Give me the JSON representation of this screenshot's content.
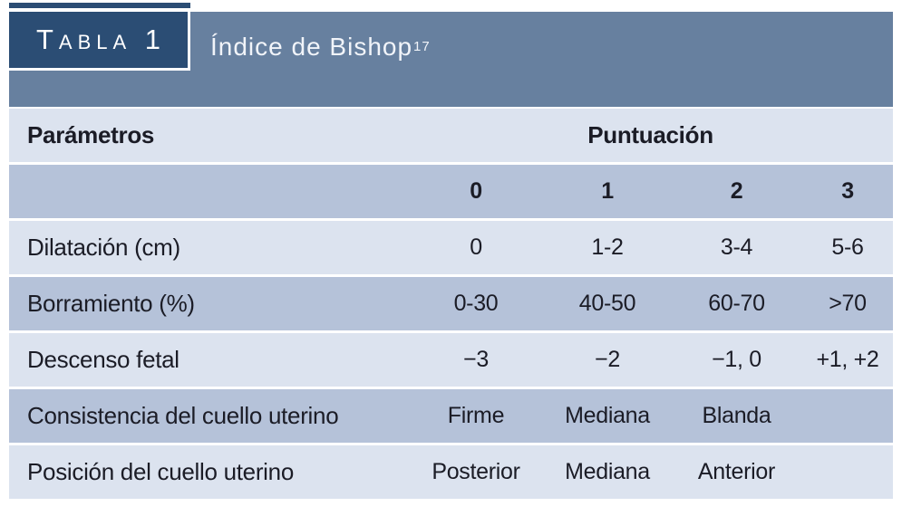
{
  "header": {
    "tag": "Tabla 1",
    "title": "Índice de Bishop",
    "title_reference": "17"
  },
  "table": {
    "param_header": "Parámetros",
    "score_header": "Puntuación",
    "score_columns": [
      "0",
      "1",
      "2",
      "3"
    ],
    "rows": [
      {
        "label": "Dilatación (cm)",
        "values": [
          "0",
          "1-2",
          "3-4",
          "5-6"
        ]
      },
      {
        "label": "Borramiento (%)",
        "values": [
          "0-30",
          "40-50",
          "60-70",
          ">70"
        ]
      },
      {
        "label": "Descenso fetal",
        "values": [
          "−3",
          "−2",
          "−1, 0",
          "+1, +2"
        ]
      },
      {
        "label": "Consistencia del cuello uterino",
        "values": [
          "Firme",
          "Mediana",
          "Blanda",
          ""
        ]
      },
      {
        "label": "Posición del cuello uterino",
        "values": [
          "Posterior",
          "Mediana",
          "Anterior",
          ""
        ]
      }
    ]
  },
  "colors": {
    "navy": "#2b4d74",
    "slate_band": "#67809f",
    "row_light": "#dce3ef",
    "row_medium": "#b5c2d9",
    "text": "#1b1c26",
    "header_text": "#ffffff"
  }
}
